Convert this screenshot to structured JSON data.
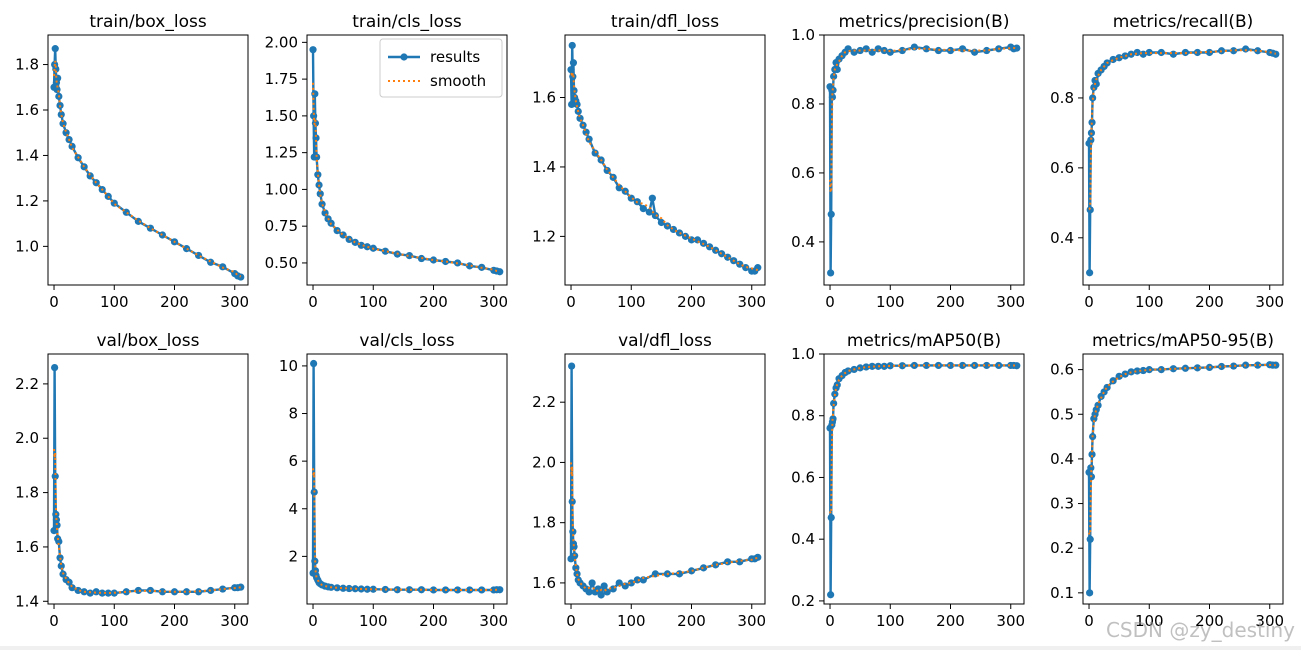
{
  "legend": {
    "results_label": "results",
    "smooth_label": "smooth"
  },
  "colors": {
    "results": "#1f77b4",
    "smooth": "#ff7f0e",
    "axes": "#000000"
  },
  "watermark": "CSDN @zy_destiny",
  "chart_data": [
    {
      "type": "line",
      "title": "train/box_loss",
      "xlim": [
        -10,
        322
      ],
      "ylim": [
        0.83,
        1.93
      ],
      "xticks": [
        0,
        100,
        200,
        300
      ],
      "yticks": [
        1.0,
        1.2,
        1.4,
        1.6,
        1.8
      ],
      "ytick_labels": [
        "1.0",
        "1.2",
        "1.4",
        "1.6",
        "1.8"
      ],
      "series": [
        {
          "name": "results",
          "x": [
            0,
            1,
            2,
            3,
            4,
            5,
            6,
            8,
            10,
            12,
            15,
            20,
            25,
            30,
            40,
            50,
            60,
            70,
            80,
            90,
            100,
            120,
            140,
            160,
            180,
            200,
            220,
            240,
            260,
            280,
            300,
            305,
            310
          ],
          "y": [
            1.7,
            1.8,
            1.87,
            1.78,
            1.72,
            1.69,
            1.74,
            1.66,
            1.62,
            1.58,
            1.54,
            1.5,
            1.47,
            1.44,
            1.39,
            1.35,
            1.31,
            1.28,
            1.25,
            1.22,
            1.19,
            1.15,
            1.11,
            1.08,
            1.05,
            1.02,
            0.99,
            0.96,
            0.93,
            0.91,
            0.88,
            0.87,
            0.865
          ]
        }
      ]
    },
    {
      "type": "line",
      "title": "train/cls_loss",
      "xlim": [
        -10,
        322
      ],
      "ylim": [
        0.35,
        2.05
      ],
      "xticks": [
        0,
        100,
        200,
        300
      ],
      "yticks": [
        0.5,
        0.75,
        1.0,
        1.25,
        1.5,
        1.75,
        2.0
      ],
      "ytick_labels": [
        "0.50",
        "0.75",
        "1.00",
        "1.25",
        "1.50",
        "1.75",
        "2.00"
      ],
      "legend": true,
      "series": [
        {
          "name": "results",
          "x": [
            0,
            1,
            2,
            3,
            4,
            5,
            6,
            8,
            10,
            12,
            15,
            20,
            25,
            30,
            40,
            50,
            60,
            70,
            80,
            90,
            100,
            120,
            140,
            160,
            180,
            200,
            220,
            240,
            260,
            280,
            300,
            305,
            310
          ],
          "y": [
            1.95,
            1.5,
            1.22,
            1.65,
            1.45,
            1.35,
            1.22,
            1.1,
            1.03,
            0.97,
            0.9,
            0.84,
            0.8,
            0.77,
            0.72,
            0.69,
            0.66,
            0.64,
            0.62,
            0.61,
            0.6,
            0.58,
            0.56,
            0.55,
            0.53,
            0.52,
            0.51,
            0.5,
            0.48,
            0.47,
            0.45,
            0.445,
            0.44
          ]
        }
      ]
    },
    {
      "type": "line",
      "title": "train/dfl_loss",
      "xlim": [
        -10,
        322
      ],
      "ylim": [
        1.06,
        1.78
      ],
      "xticks": [
        0,
        100,
        200,
        300
      ],
      "yticks": [
        1.2,
        1.4,
        1.6
      ],
      "ytick_labels": [
        "1.2",
        "1.4",
        "1.6"
      ],
      "series": [
        {
          "name": "results",
          "x": [
            0,
            1,
            2,
            3,
            4,
            5,
            6,
            8,
            10,
            12,
            15,
            20,
            25,
            30,
            40,
            50,
            60,
            70,
            80,
            90,
            100,
            110,
            120,
            130,
            135,
            140,
            150,
            160,
            170,
            180,
            190,
            200,
            210,
            220,
            230,
            240,
            250,
            260,
            270,
            280,
            290,
            300,
            305,
            310
          ],
          "y": [
            1.68,
            1.58,
            1.75,
            1.66,
            1.7,
            1.62,
            1.6,
            1.59,
            1.58,
            1.56,
            1.54,
            1.52,
            1.5,
            1.48,
            1.44,
            1.42,
            1.39,
            1.37,
            1.34,
            1.33,
            1.31,
            1.3,
            1.28,
            1.27,
            1.31,
            1.26,
            1.24,
            1.23,
            1.22,
            1.21,
            1.2,
            1.19,
            1.19,
            1.18,
            1.17,
            1.16,
            1.15,
            1.14,
            1.13,
            1.12,
            1.11,
            1.1,
            1.1,
            1.11
          ]
        }
      ]
    },
    {
      "type": "line",
      "title": "metrics/precision(B)",
      "xlim": [
        -10,
        322
      ],
      "ylim": [
        0.275,
        1.0
      ],
      "xticks": [
        0,
        100,
        200,
        300
      ],
      "yticks": [
        0.4,
        0.6,
        0.8,
        1.0
      ],
      "ytick_labels": [
        "0.4",
        "0.6",
        "0.8",
        "1.0"
      ],
      "series": [
        {
          "name": "results",
          "x": [
            0,
            1,
            2,
            3,
            4,
            5,
            6,
            8,
            10,
            12,
            15,
            20,
            25,
            30,
            40,
            50,
            60,
            70,
            80,
            90,
            100,
            120,
            140,
            160,
            180,
            200,
            220,
            240,
            260,
            280,
            300,
            305,
            310
          ],
          "y": [
            0.85,
            0.31,
            0.48,
            0.84,
            0.82,
            0.84,
            0.88,
            0.9,
            0.92,
            0.9,
            0.93,
            0.94,
            0.95,
            0.96,
            0.95,
            0.955,
            0.96,
            0.95,
            0.96,
            0.955,
            0.95,
            0.955,
            0.965,
            0.96,
            0.955,
            0.955,
            0.96,
            0.95,
            0.955,
            0.96,
            0.965,
            0.96,
            0.962
          ]
        }
      ]
    },
    {
      "type": "line",
      "title": "metrics/recall(B)",
      "xlim": [
        -10,
        322
      ],
      "ylim": [
        0.265,
        0.98
      ],
      "xticks": [
        0,
        100,
        200,
        300
      ],
      "yticks": [
        0.4,
        0.6,
        0.8
      ],
      "ytick_labels": [
        "0.4",
        "0.6",
        "0.8"
      ],
      "series": [
        {
          "name": "results",
          "x": [
            0,
            1,
            2,
            3,
            4,
            5,
            6,
            8,
            10,
            12,
            15,
            20,
            25,
            30,
            40,
            50,
            60,
            70,
            80,
            90,
            100,
            120,
            140,
            160,
            180,
            200,
            220,
            240,
            260,
            280,
            300,
            305,
            310
          ],
          "y": [
            0.67,
            0.3,
            0.48,
            0.68,
            0.7,
            0.73,
            0.8,
            0.83,
            0.85,
            0.84,
            0.87,
            0.88,
            0.89,
            0.9,
            0.91,
            0.915,
            0.92,
            0.925,
            0.93,
            0.925,
            0.93,
            0.93,
            0.925,
            0.93,
            0.93,
            0.93,
            0.935,
            0.935,
            0.94,
            0.935,
            0.93,
            0.928,
            0.925
          ]
        }
      ]
    },
    {
      "type": "line",
      "title": "val/box_loss",
      "xlim": [
        -10,
        322
      ],
      "ylim": [
        1.39,
        2.31
      ],
      "xticks": [
        0,
        100,
        200,
        300
      ],
      "yticks": [
        1.4,
        1.6,
        1.8,
        2.0,
        2.2
      ],
      "ytick_labels": [
        "1.4",
        "1.6",
        "1.8",
        "2.0",
        "2.2"
      ],
      "series": [
        {
          "name": "results",
          "x": [
            0,
            1,
            2,
            3,
            4,
            5,
            6,
            8,
            10,
            12,
            15,
            20,
            25,
            30,
            40,
            50,
            60,
            70,
            80,
            90,
            100,
            120,
            140,
            160,
            180,
            200,
            220,
            240,
            260,
            280,
            300,
            305,
            310
          ],
          "y": [
            1.66,
            2.26,
            1.86,
            1.72,
            1.7,
            1.68,
            1.63,
            1.62,
            1.56,
            1.53,
            1.5,
            1.48,
            1.47,
            1.45,
            1.44,
            1.435,
            1.43,
            1.435,
            1.43,
            1.43,
            1.43,
            1.435,
            1.44,
            1.44,
            1.435,
            1.435,
            1.435,
            1.435,
            1.44,
            1.445,
            1.45,
            1.45,
            1.452
          ]
        }
      ]
    },
    {
      "type": "line",
      "title": "val/cls_loss",
      "xlim": [
        -10,
        322
      ],
      "ylim": [
        0.0,
        10.5
      ],
      "xticks": [
        0,
        100,
        200,
        300
      ],
      "yticks": [
        2,
        4,
        6,
        8,
        10
      ],
      "ytick_labels": [
        "2",
        "4",
        "6",
        "8",
        "10"
      ],
      "series": [
        {
          "name": "results",
          "x": [
            0,
            1,
            2,
            3,
            4,
            5,
            6,
            8,
            10,
            12,
            15,
            20,
            25,
            30,
            40,
            50,
            60,
            70,
            80,
            90,
            100,
            120,
            140,
            160,
            180,
            200,
            220,
            240,
            260,
            280,
            300,
            305,
            310
          ],
          "y": [
            1.3,
            10.1,
            4.7,
            1.8,
            1.4,
            1.2,
            1.1,
            1.0,
            0.9,
            0.85,
            0.8,
            0.75,
            0.72,
            0.7,
            0.68,
            0.66,
            0.65,
            0.64,
            0.63,
            0.62,
            0.62,
            0.61,
            0.6,
            0.6,
            0.6,
            0.59,
            0.59,
            0.59,
            0.59,
            0.59,
            0.59,
            0.6,
            0.6
          ]
        }
      ]
    },
    {
      "type": "line",
      "title": "val/dfl_loss",
      "xlim": [
        -10,
        322
      ],
      "ylim": [
        1.53,
        2.36
      ],
      "xticks": [
        0,
        100,
        200,
        300
      ],
      "yticks": [
        1.6,
        1.8,
        2.0,
        2.2
      ],
      "ytick_labels": [
        "1.6",
        "1.8",
        "2.0",
        "2.2"
      ],
      "series": [
        {
          "name": "results",
          "x": [
            0,
            1,
            2,
            3,
            4,
            5,
            6,
            8,
            10,
            12,
            15,
            20,
            25,
            30,
            35,
            40,
            45,
            50,
            55,
            60,
            70,
            80,
            90,
            100,
            110,
            120,
            140,
            160,
            180,
            200,
            220,
            240,
            260,
            280,
            300,
            305,
            310
          ],
          "y": [
            1.68,
            2.32,
            1.87,
            1.77,
            1.73,
            1.72,
            1.69,
            1.65,
            1.63,
            1.61,
            1.6,
            1.59,
            1.58,
            1.57,
            1.6,
            1.57,
            1.58,
            1.56,
            1.59,
            1.57,
            1.58,
            1.6,
            1.59,
            1.6,
            1.61,
            1.61,
            1.63,
            1.63,
            1.63,
            1.64,
            1.65,
            1.66,
            1.67,
            1.67,
            1.68,
            1.68,
            1.685
          ]
        }
      ]
    },
    {
      "type": "line",
      "title": "metrics/mAP50(B)",
      "xlim": [
        -10,
        322
      ],
      "ylim": [
        0.19,
        1.0
      ],
      "xticks": [
        0,
        100,
        200,
        300
      ],
      "yticks": [
        0.2,
        0.4,
        0.6,
        0.8,
        1.0
      ],
      "ytick_labels": [
        "0.2",
        "0.4",
        "0.6",
        "0.8",
        "1.0"
      ],
      "series": [
        {
          "name": "results",
          "x": [
            0,
            1,
            2,
            3,
            4,
            5,
            6,
            8,
            10,
            12,
            15,
            20,
            25,
            30,
            40,
            50,
            60,
            70,
            80,
            90,
            100,
            120,
            140,
            160,
            180,
            200,
            220,
            240,
            260,
            280,
            300,
            305,
            310
          ],
          "y": [
            0.76,
            0.22,
            0.47,
            0.77,
            0.78,
            0.79,
            0.84,
            0.87,
            0.89,
            0.9,
            0.92,
            0.93,
            0.94,
            0.945,
            0.95,
            0.955,
            0.958,
            0.96,
            0.96,
            0.96,
            0.962,
            0.962,
            0.963,
            0.963,
            0.963,
            0.963,
            0.963,
            0.963,
            0.963,
            0.963,
            0.963,
            0.963,
            0.962
          ]
        }
      ]
    },
    {
      "type": "line",
      "title": "metrics/mAP50-95(B)",
      "xlim": [
        -10,
        322
      ],
      "ylim": [
        0.075,
        0.635
      ],
      "xticks": [
        0,
        100,
        200,
        300
      ],
      "yticks": [
        0.1,
        0.2,
        0.3,
        0.4,
        0.5,
        0.6
      ],
      "ytick_labels": [
        "0.1",
        "0.2",
        "0.3",
        "0.4",
        "0.5",
        "0.6"
      ],
      "series": [
        {
          "name": "results",
          "x": [
            0,
            1,
            2,
            3,
            4,
            5,
            6,
            8,
            10,
            12,
            15,
            20,
            25,
            30,
            40,
            50,
            60,
            70,
            80,
            90,
            100,
            120,
            140,
            160,
            180,
            200,
            220,
            240,
            260,
            280,
            300,
            305,
            310
          ],
          "y": [
            0.37,
            0.1,
            0.22,
            0.38,
            0.36,
            0.41,
            0.45,
            0.49,
            0.5,
            0.51,
            0.52,
            0.54,
            0.55,
            0.56,
            0.575,
            0.585,
            0.59,
            0.595,
            0.597,
            0.598,
            0.6,
            0.6,
            0.602,
            0.603,
            0.604,
            0.605,
            0.607,
            0.608,
            0.61,
            0.61,
            0.611,
            0.61,
            0.61
          ]
        }
      ]
    }
  ]
}
